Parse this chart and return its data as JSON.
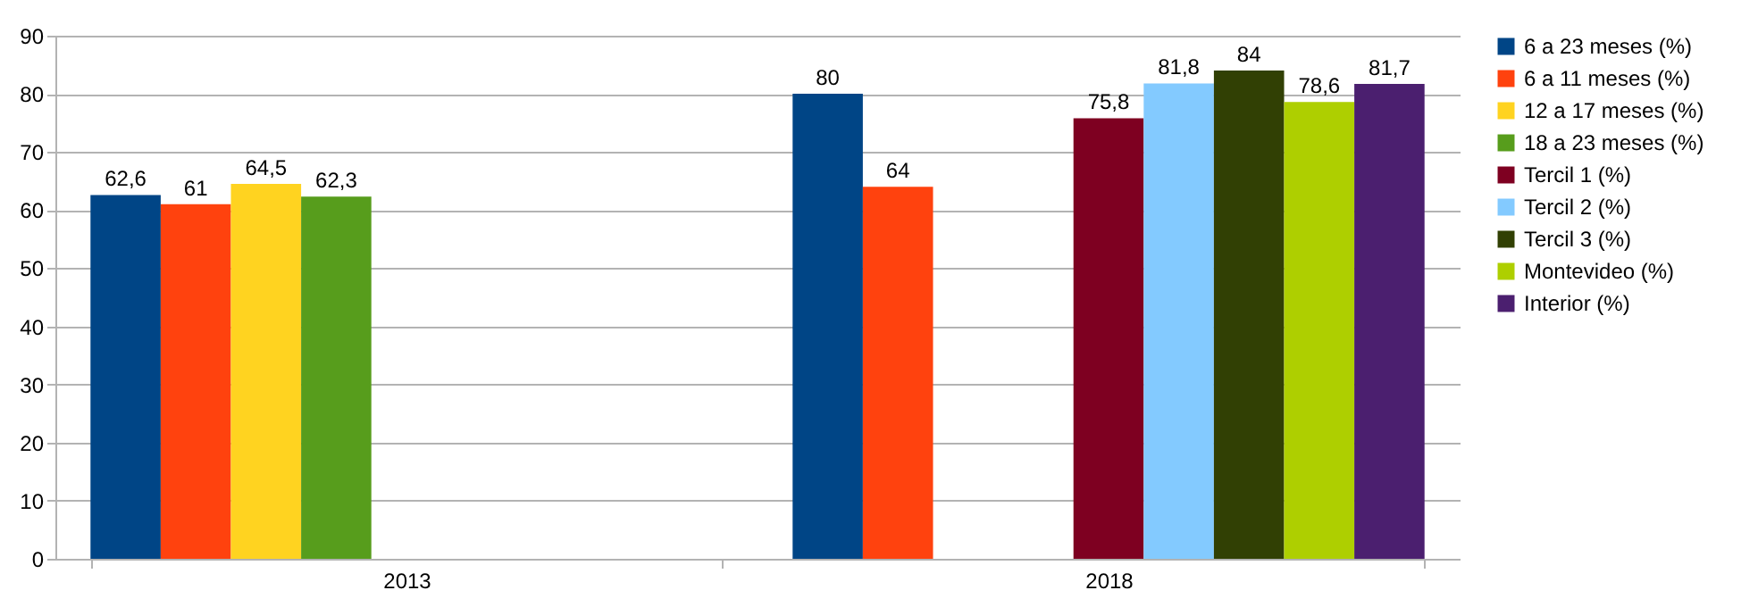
{
  "chart_data": {
    "type": "bar",
    "categories": [
      "2013",
      "2018"
    ],
    "series": [
      {
        "name": "6 a 23 meses (%)",
        "color": "#004586",
        "values": [
          62.6,
          80
        ],
        "value_labels": [
          "62,6",
          "80"
        ]
      },
      {
        "name": "6 a 11 meses (%)",
        "color": "#ff420e",
        "values": [
          61,
          64
        ],
        "value_labels": [
          "61",
          "64"
        ]
      },
      {
        "name": "12 a 17 meses (%)",
        "color": "#ffd320",
        "values": [
          64.5,
          null
        ],
        "value_labels": [
          "64,5",
          null
        ]
      },
      {
        "name": "18 a 23 meses (%)",
        "color": "#579d1c",
        "values": [
          62.3,
          null
        ],
        "value_labels": [
          "62,3",
          null
        ]
      },
      {
        "name": "Tercil 1 (%)",
        "color": "#7e0021",
        "values": [
          null,
          75.8
        ],
        "value_labels": [
          null,
          "75,8"
        ]
      },
      {
        "name": "Tercil 2 (%)",
        "color": "#83caff",
        "values": [
          null,
          81.8
        ],
        "value_labels": [
          null,
          "81,8"
        ]
      },
      {
        "name": "Tercil 3 (%)",
        "color": "#314004",
        "values": [
          null,
          84
        ],
        "value_labels": [
          null,
          "84"
        ]
      },
      {
        "name": "Montevideo (%)",
        "color": "#aecf00",
        "values": [
          null,
          78.6
        ],
        "value_labels": [
          null,
          "78,6"
        ]
      },
      {
        "name": "Interior (%)",
        "color": "#4b1f6f",
        "values": [
          null,
          81.7
        ],
        "value_labels": [
          null,
          "81,7"
        ]
      }
    ],
    "ylim": [
      0,
      90
    ],
    "yticks": [
      0,
      10,
      20,
      30,
      40,
      50,
      60,
      70,
      80,
      90
    ],
    "grid": "y",
    "legend": "right"
  }
}
